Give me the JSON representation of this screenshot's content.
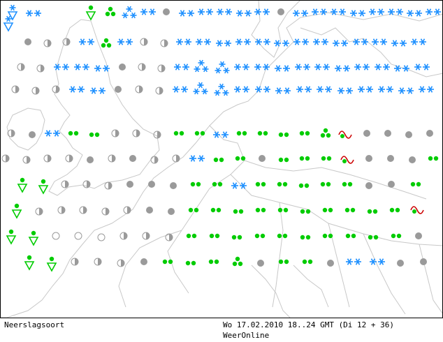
{
  "map": {
    "title": "Neerslagsoort",
    "valid_time": "Wo 17.02.2010 18..24 GMT (Di 12 + 36)",
    "provider": "WeerOnline",
    "colors": {
      "snow": "#1e90ff",
      "rain": "#00cc00",
      "overcast": "#9a9a9a",
      "half": "#9a9a9a",
      "coast": "#c8c8c8",
      "freezing": "#cc0000",
      "frame": "#000000"
    },
    "symbol_types": {
      "S": "snow-icon",
      "SS": "heavy-snow-icon",
      "R": "rain-icon",
      "RS": "rain-shower-icon",
      "SH": "snow-shower-icon",
      "TS": "triangle-shower-icon",
      "FZ": "freezing-rain-icon",
      "O": "overcast-icon",
      "H": "half-cloud-icon",
      "C": "clear-icon"
    },
    "rows": [
      {
        "y": 17,
        "symbols": [
          [
            "SH",
            18
          ],
          [
            "S",
            48
          ],
          [
            "TS",
            130
          ],
          [
            "RS",
            158
          ],
          [
            "SS",
            185
          ],
          [
            "S",
            212
          ],
          [
            "O",
            238
          ],
          [
            "S",
            267
          ],
          [
            "S",
            294
          ],
          [
            "S",
            321
          ],
          [
            "S",
            349
          ],
          [
            "S",
            375
          ],
          [
            "O",
            402
          ],
          [
            "S",
            430
          ],
          [
            "S",
            457
          ],
          [
            "S",
            484
          ],
          [
            "S",
            512
          ],
          [
            "S",
            539
          ],
          [
            "S",
            566
          ],
          [
            "S",
            593
          ],
          [
            "S",
            620
          ]
        ]
      },
      {
        "y": 33,
        "symbols": [
          [
            "SH",
            12
          ]
        ]
      },
      {
        "y": 60,
        "symbols": [
          [
            "O",
            40
          ],
          [
            "H",
            68
          ],
          [
            "H",
            95
          ],
          [
            "S",
            124
          ],
          [
            "RS",
            152
          ],
          [
            "S",
            179
          ],
          [
            "H",
            206
          ],
          [
            "H",
            235
          ],
          [
            "S",
            263
          ],
          [
            "S",
            291
          ],
          [
            "S",
            320
          ],
          [
            "S",
            348
          ],
          [
            "S",
            376
          ],
          [
            "S",
            403
          ],
          [
            "S",
            431
          ],
          [
            "S",
            459
          ],
          [
            "S",
            487
          ],
          [
            "S",
            516
          ],
          [
            "S",
            543
          ],
          [
            "S",
            571
          ],
          [
            "S",
            599
          ]
        ]
      },
      {
        "y": 96,
        "symbols": [
          [
            "H",
            30
          ],
          [
            "H",
            58
          ],
          [
            "S",
            88
          ],
          [
            "S",
            117
          ],
          [
            "S",
            146
          ],
          [
            "O",
            175
          ],
          [
            "H",
            203
          ],
          [
            "H",
            231
          ],
          [
            "S",
            260
          ],
          [
            "SS",
            288
          ],
          [
            "SS",
            318
          ],
          [
            "S",
            346
          ],
          [
            "S",
            375
          ],
          [
            "S",
            404
          ],
          [
            "S",
            433
          ],
          [
            "S",
            461
          ],
          [
            "S",
            490
          ],
          [
            "S",
            518
          ],
          [
            "S",
            547
          ],
          [
            "S",
            575
          ],
          [
            "S",
            604
          ]
        ]
      },
      {
        "y": 128,
        "symbols": [
          [
            "H",
            22
          ],
          [
            "H",
            51
          ],
          [
            "H",
            80
          ],
          [
            "S",
            110
          ],
          [
            "S",
            140
          ],
          [
            "O",
            169
          ],
          [
            "H",
            199
          ],
          [
            "H",
            228
          ],
          [
            "S",
            258
          ],
          [
            "SS",
            287
          ],
          [
            "SS",
            317
          ],
          [
            "S",
            346
          ],
          [
            "S",
            376
          ],
          [
            "S",
            405
          ],
          [
            "S",
            435
          ],
          [
            "S",
            464
          ],
          [
            "S",
            494
          ],
          [
            "S",
            523
          ],
          [
            "S",
            552
          ],
          [
            "S",
            581
          ],
          [
            "S",
            610
          ]
        ]
      },
      {
        "y": 191,
        "symbols": [
          [
            "H",
            16
          ],
          [
            "O",
            46
          ],
          [
            "S",
            75
          ],
          [
            "R",
            105
          ],
          [
            "R",
            135
          ],
          [
            "H",
            165
          ],
          [
            "H",
            195
          ],
          [
            "H",
            225
          ],
          [
            "R",
            256
          ],
          [
            "R",
            286
          ],
          [
            "S",
            316
          ],
          [
            "R",
            346
          ],
          [
            "R",
            376
          ],
          [
            "R",
            406
          ],
          [
            "R",
            436
          ],
          [
            "RS",
            466
          ],
          [
            "FZ",
            494
          ],
          [
            "O",
            525
          ],
          [
            "O",
            555
          ],
          [
            "O",
            585
          ],
          [
            "O",
            615
          ]
        ]
      },
      {
        "y": 227,
        "symbols": [
          [
            "H",
            8
          ],
          [
            "H",
            38
          ],
          [
            "H",
            68
          ],
          [
            "H",
            99
          ],
          [
            "O",
            129
          ],
          [
            "H",
            160
          ],
          [
            "O",
            190
          ],
          [
            "H",
            221
          ],
          [
            "H",
            252
          ],
          [
            "S",
            282
          ],
          [
            "R",
            313
          ],
          [
            "R",
            344
          ],
          [
            "O",
            375
          ],
          [
            "R",
            406
          ],
          [
            "R",
            436
          ],
          [
            "R",
            467
          ],
          [
            "FZ",
            497
          ],
          [
            "O",
            528
          ],
          [
            "O",
            559
          ],
          [
            "O",
            590
          ],
          [
            "R",
            620
          ]
        ]
      },
      {
        "y": 264,
        "symbols": [
          [
            "TS",
            32
          ],
          [
            "TS",
            62
          ],
          [
            "H",
            93
          ],
          [
            "H",
            124
          ],
          [
            "H",
            155
          ],
          [
            "O",
            186
          ],
          [
            "O",
            217
          ],
          [
            "O",
            248
          ],
          [
            "R",
            280
          ],
          [
            "R",
            311
          ],
          [
            "S",
            342
          ],
          [
            "R",
            373
          ],
          [
            "R",
            404
          ],
          [
            "R",
            435
          ],
          [
            "R",
            466
          ],
          [
            "R",
            497
          ],
          [
            "O",
            528
          ],
          [
            "O",
            560
          ],
          [
            "R",
            595
          ]
        ]
      },
      {
        "y": 301,
        "symbols": [
          [
            "TS",
            24
          ],
          [
            "H",
            56
          ],
          [
            "H",
            88
          ],
          [
            "H",
            119
          ],
          [
            "H",
            151
          ],
          [
            "H",
            182
          ],
          [
            "O",
            214
          ],
          [
            "O",
            245
          ],
          [
            "R",
            277
          ],
          [
            "R",
            309
          ],
          [
            "R",
            341
          ],
          [
            "R",
            373
          ],
          [
            "R",
            405
          ],
          [
            "R",
            437
          ],
          [
            "R",
            469
          ],
          [
            "R",
            501
          ],
          [
            "R",
            533
          ],
          [
            "R",
            565
          ],
          [
            "FZ",
            597
          ]
        ]
      },
      {
        "y": 338,
        "symbols": [
          [
            "TS",
            16
          ],
          [
            "TS",
            48
          ],
          [
            "C",
            80
          ],
          [
            "C",
            112
          ],
          [
            "C",
            145
          ],
          [
            "H",
            177
          ],
          [
            "H",
            209
          ],
          [
            "H",
            242
          ],
          [
            "R",
            274
          ],
          [
            "R",
            307
          ],
          [
            "R",
            339
          ],
          [
            "R",
            372
          ],
          [
            "R",
            404
          ],
          [
            "R",
            437
          ],
          [
            "R",
            469
          ],
          [
            "R",
            502
          ],
          [
            "R",
            534
          ],
          [
            "R",
            567
          ],
          [
            "O",
            599
          ]
        ]
      },
      {
        "y": 375,
        "symbols": [
          [
            "TS",
            42
          ],
          [
            "TS",
            74
          ],
          [
            "H",
            107
          ],
          [
            "H",
            140
          ],
          [
            "H",
            173
          ],
          [
            "O",
            206
          ],
          [
            "R",
            240
          ],
          [
            "R",
            273
          ],
          [
            "R",
            306
          ],
          [
            "RS",
            340
          ],
          [
            "O",
            373
          ],
          [
            "R",
            406
          ],
          [
            "R",
            440
          ],
          [
            "O",
            473
          ],
          [
            "S",
            506
          ],
          [
            "S",
            540
          ],
          [
            "O",
            573
          ],
          [
            "O",
            606
          ]
        ]
      }
    ]
  }
}
